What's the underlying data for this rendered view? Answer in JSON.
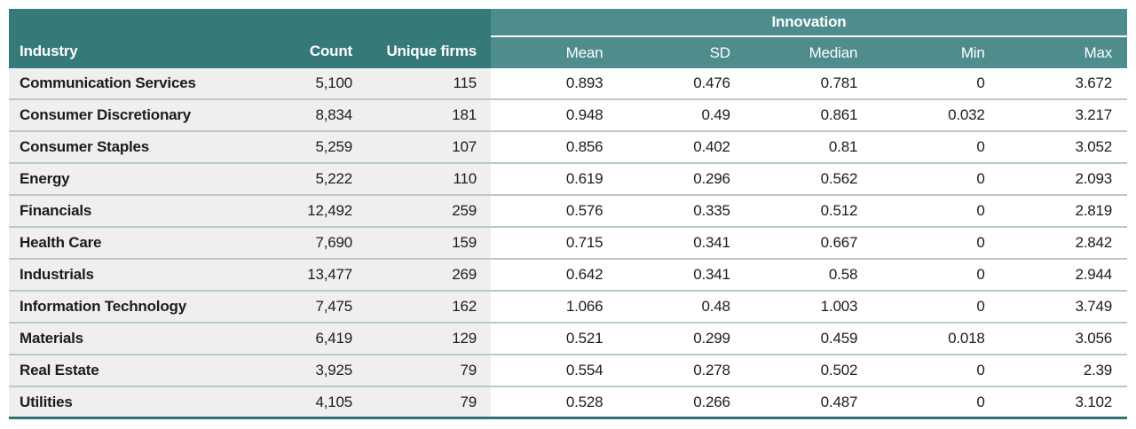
{
  "table": {
    "group_header": "Innovation",
    "left_columns": [
      "Industry",
      "Count",
      "Unique firms"
    ],
    "sub_columns": [
      "Mean",
      "SD",
      "Median",
      "Min",
      "Max"
    ],
    "rows": [
      {
        "cells": [
          "Communication Services",
          "5,100",
          "115",
          "0.893",
          "0.476",
          "0.781",
          "0",
          "3.672"
        ]
      },
      {
        "cells": [
          "Consumer Discretionary",
          "8,834",
          "181",
          "0.948",
          "0.49",
          "0.861",
          "0.032",
          "3.217"
        ]
      },
      {
        "cells": [
          "Consumer Staples",
          "5,259",
          "107",
          "0.856",
          "0.402",
          "0.81",
          "0",
          "3.052"
        ]
      },
      {
        "cells": [
          "Energy",
          "5,222",
          "110",
          "0.619",
          "0.296",
          "0.562",
          "0",
          "2.093"
        ]
      },
      {
        "cells": [
          "Financials",
          "12,492",
          "259",
          "0.576",
          "0.335",
          "0.512",
          "0",
          "2.819"
        ]
      },
      {
        "cells": [
          "Health Care",
          "7,690",
          "159",
          "0.715",
          "0.341",
          "0.667",
          "0",
          "2.842"
        ]
      },
      {
        "cells": [
          "Industrials",
          "13,477",
          "269",
          "0.642",
          "0.341",
          "0.58",
          "0",
          "2.944"
        ]
      },
      {
        "cells": [
          "Information Technology",
          "7,475",
          "162",
          "1.066",
          "0.48",
          "1.003",
          "0",
          "3.749"
        ]
      },
      {
        "cells": [
          "Materials",
          "6,419",
          "129",
          "0.521",
          "0.299",
          "0.459",
          "0.018",
          "3.056"
        ]
      },
      {
        "cells": [
          "Real Estate",
          "3,925",
          "79",
          "0.554",
          "0.278",
          "0.502",
          "0",
          "2.39"
        ]
      },
      {
        "cells": [
          "Utilities",
          "4,105",
          "79",
          "0.528",
          "0.266",
          "0.487",
          "0",
          "3.102"
        ]
      }
    ]
  },
  "colors": {
    "header_dark_teal": "#36797b",
    "header_light_teal": "#4e8c8e",
    "row_left_background": "#f0efef",
    "row_right_background": "#ffffff",
    "row_separator": "#b7c9ce",
    "bottom_border": "#2f7274",
    "header_text": "#ffffff",
    "body_text": "#1c1c1c"
  },
  "chart_data": {
    "type": "table",
    "title": "Innovation descriptive statistics by industry",
    "columns": [
      "Industry",
      "Count",
      "Unique firms",
      "Innovation Mean",
      "Innovation SD",
      "Innovation Median",
      "Innovation Min",
      "Innovation Max"
    ],
    "rows": [
      [
        "Communication Services",
        5100,
        115,
        0.893,
        0.476,
        0.781,
        0,
        3.672
      ],
      [
        "Consumer Discretionary",
        8834,
        181,
        0.948,
        0.49,
        0.861,
        0.032,
        3.217
      ],
      [
        "Consumer Staples",
        5259,
        107,
        0.856,
        0.402,
        0.81,
        0,
        3.052
      ],
      [
        "Energy",
        5222,
        110,
        0.619,
        0.296,
        0.562,
        0,
        2.093
      ],
      [
        "Financials",
        12492,
        259,
        0.576,
        0.335,
        0.512,
        0,
        2.819
      ],
      [
        "Health Care",
        7690,
        159,
        0.715,
        0.341,
        0.667,
        0,
        2.842
      ],
      [
        "Industrials",
        13477,
        269,
        0.642,
        0.341,
        0.58,
        0,
        2.944
      ],
      [
        "Information Technology",
        7475,
        162,
        1.066,
        0.48,
        1.003,
        0,
        3.749
      ],
      [
        "Materials",
        6419,
        129,
        0.521,
        0.299,
        0.459,
        0.018,
        3.056
      ],
      [
        "Real Estate",
        3925,
        79,
        0.554,
        0.278,
        0.502,
        0,
        2.39
      ],
      [
        "Utilities",
        4105,
        79,
        0.528,
        0.266,
        0.487,
        0,
        3.102
      ]
    ]
  }
}
